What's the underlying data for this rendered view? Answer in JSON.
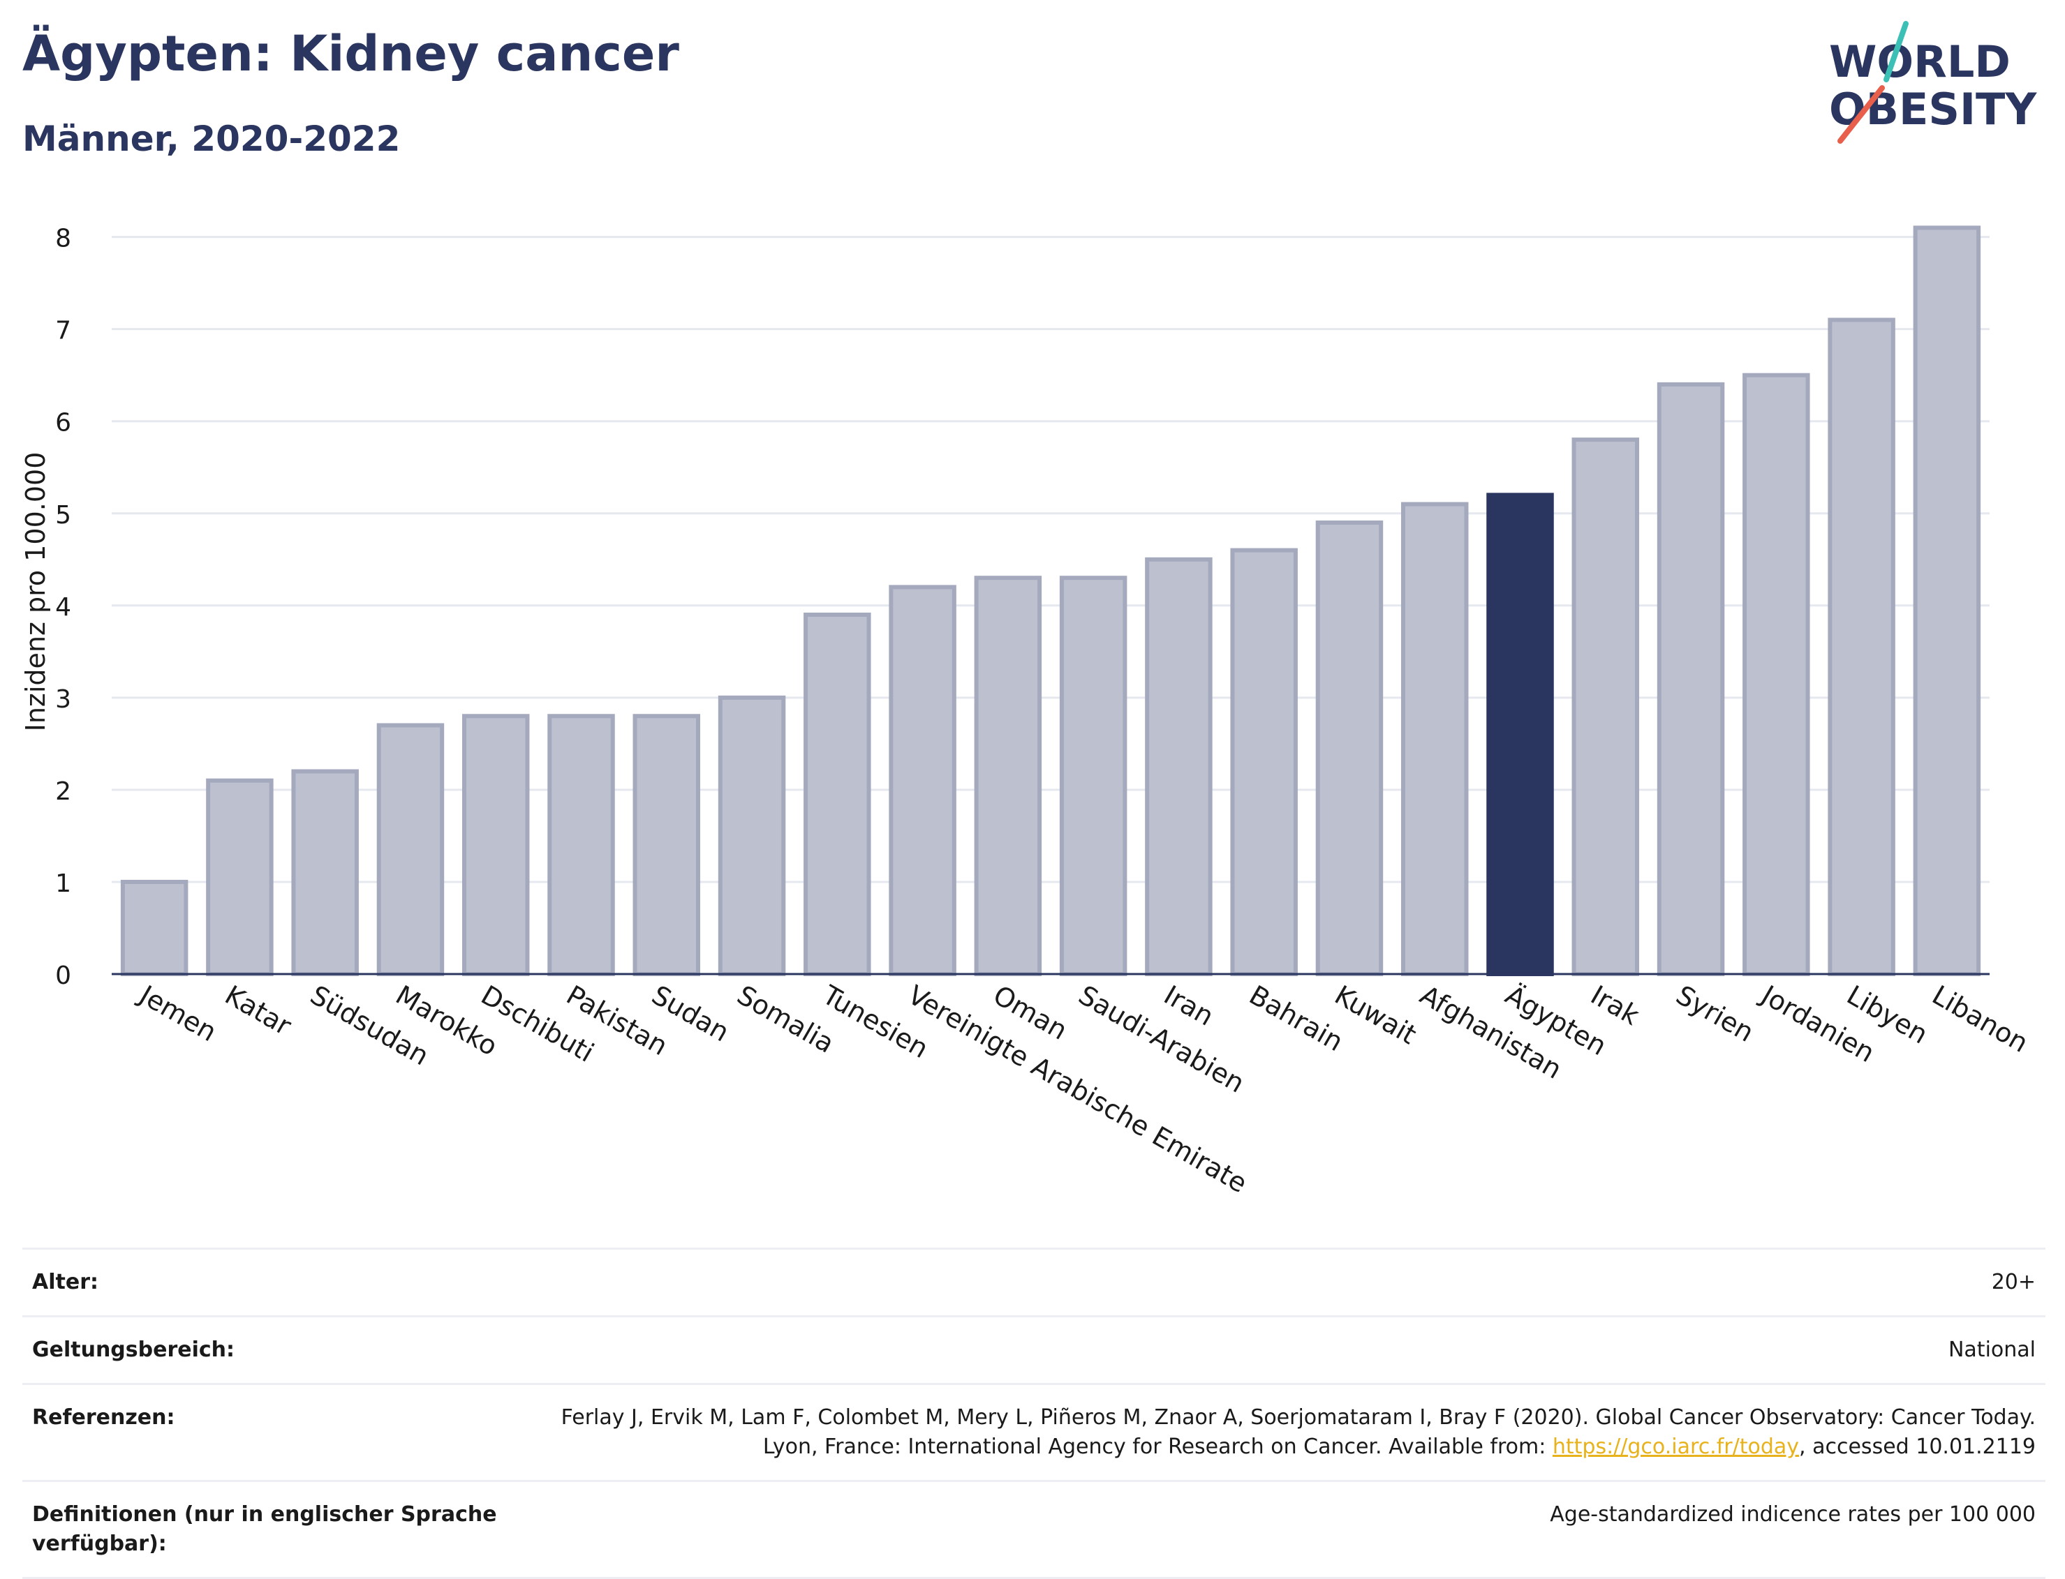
{
  "header": {
    "title": "Ägypten: Kidney cancer",
    "subtitle": "Männer, 2020-2022"
  },
  "logo": {
    "line1": "WORLD",
    "line2": "OBESITY",
    "text_color": "#2a3560",
    "slash_colors": [
      "#3cbfb5",
      "#e8604c"
    ]
  },
  "chart_data": {
    "type": "bar",
    "title": "Ägypten: Kidney cancer",
    "subtitle": "Männer, 2020-2022",
    "ylabel": "Inzidenz pro 100.000",
    "xlabel": "",
    "ylim": [
      0,
      8.3
    ],
    "yticks": [
      0,
      1,
      2,
      3,
      4,
      5,
      6,
      7,
      8
    ],
    "grid": true,
    "categories": [
      "Jemen",
      "Katar",
      "Südsudan",
      "Marokko",
      "Dschibuti",
      "Pakistan",
      "Sudan",
      "Somalia",
      "Tunesien",
      "Vereinigte Arabische Emirate",
      "Oman",
      "Saudi-Arabien",
      "Iran",
      "Bahrain",
      "Kuwait",
      "Afghanistan",
      "Ägypten",
      "Irak",
      "Syrien",
      "Jordanien",
      "Libyen",
      "Libanon"
    ],
    "values": [
      1.0,
      2.1,
      2.2,
      2.7,
      2.8,
      2.8,
      2.8,
      3.0,
      3.9,
      4.2,
      4.3,
      4.3,
      4.5,
      4.6,
      4.9,
      5.1,
      5.2,
      5.8,
      6.4,
      6.5,
      7.1,
      8.1
    ],
    "highlight": "Ägypten",
    "colors": {
      "bar": "#bcc0cf",
      "bar_edge": "#a4a9bd",
      "highlight": "#2a3560",
      "grid": "#e6e8ef",
      "axis": "#2a3560"
    }
  },
  "meta": {
    "age_label": "Alter:",
    "age_value": "20+",
    "scope_label": "Geltungsbereich:",
    "scope_value": "National",
    "ref_label": "Referenzen:",
    "ref_text_before": "Ferlay J, Ervik M, Lam F, Colombet M, Mery L, Piñeros M, Znaor A, Soerjomataram I, Bray F (2020). Global Cancer Observatory: Cancer Today. Lyon, France: International Agency for Research on Cancer. Available from: ",
    "ref_link": "https://gco.iarc.fr/today",
    "ref_text_after": ", accessed 10.01.2119",
    "def_label": "Definitionen (nur in englischer Sprache verfügbar):",
    "def_value": "Age-standardized indicence rates per 100 000"
  }
}
